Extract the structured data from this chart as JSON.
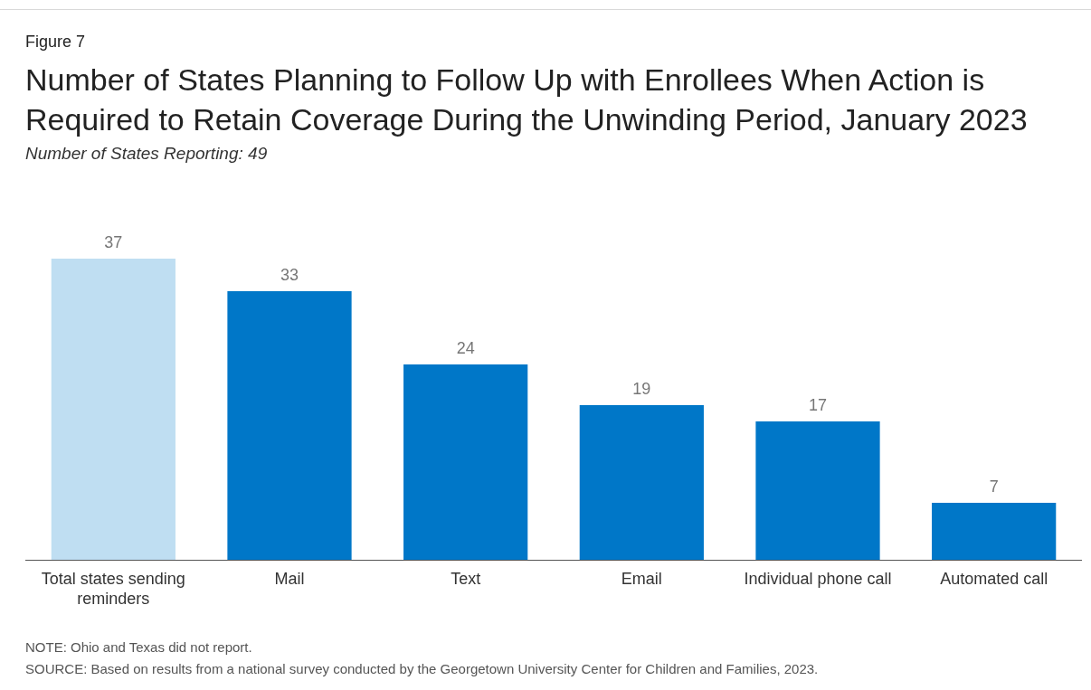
{
  "chart_data": {
    "type": "bar",
    "title": "Number of States Planning to Follow Up with Enrollees When Action is Required to Retain Coverage During the Unwinding Period, January 2023",
    "subtitle": "Number of States Reporting: 49",
    "categories": [
      "Total states sending reminders",
      "Mail",
      "Text",
      "Email",
      "Individual phone call",
      "Automated call"
    ],
    "values": [
      37,
      33,
      24,
      19,
      17,
      7
    ],
    "colors": [
      "#bfdef2",
      "#0077c8",
      "#0077c8",
      "#0077c8",
      "#0077c8",
      "#0077c8"
    ],
    "data_labels": true,
    "annotations": [
      "Figure 7",
      "NOTE: Ohio and Texas did not report.",
      "SOURCE: Based on results from a national survey conducted by the Georgetown University Center for Children and Families, 2023."
    ]
  }
}
